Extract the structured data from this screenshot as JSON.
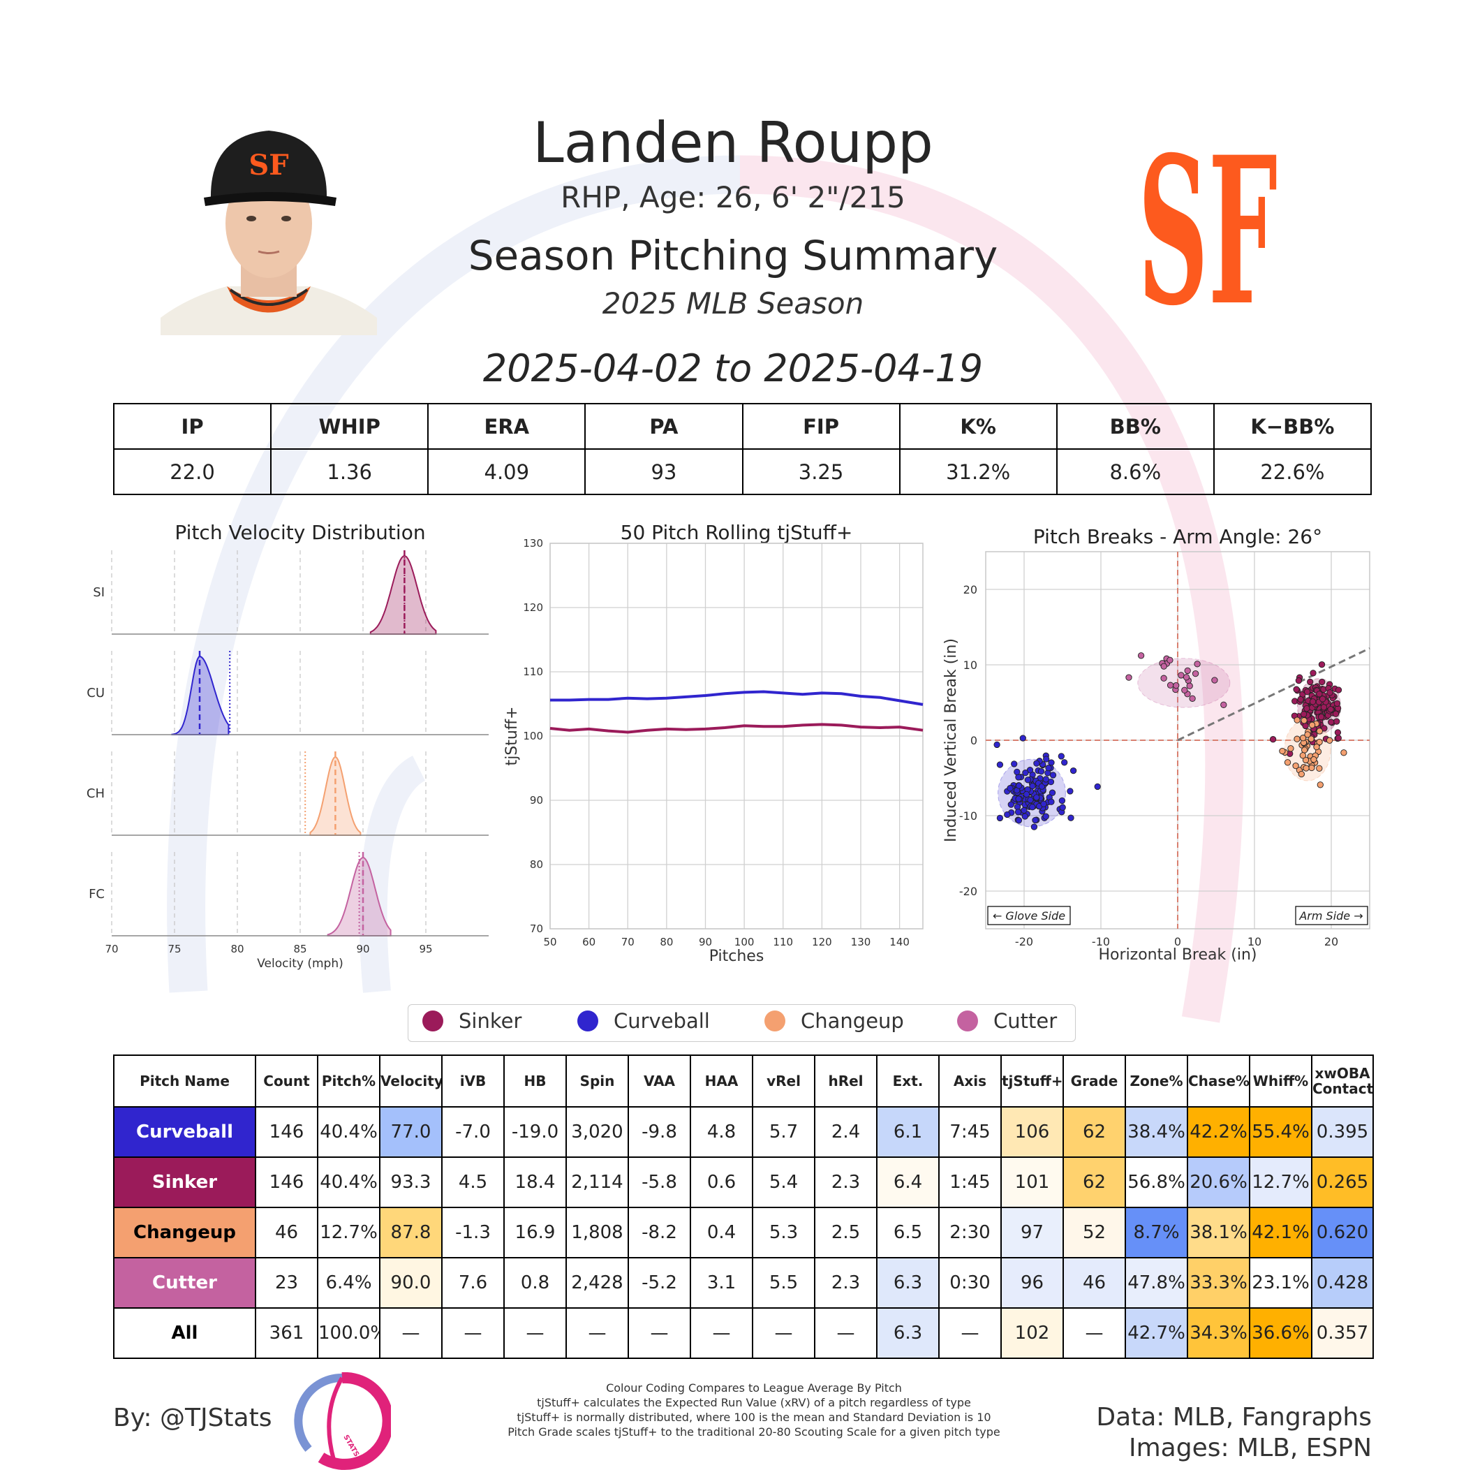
{
  "header": {
    "name": "Landen Roupp",
    "info": "RHP, Age: 26, 6' 2\"/215",
    "title": "Season Pitching Summary",
    "season": "2025 MLB Season",
    "date_range": "2025-04-02 to 2025-04-19"
  },
  "stats": {
    "headers": [
      "IP",
      "WHIP",
      "ERA",
      "PA",
      "FIP",
      "K%",
      "BB%",
      "K−BB%"
    ],
    "values": [
      "22.0",
      "1.36",
      "4.09",
      "93",
      "3.25",
      "31.2%",
      "8.6%",
      "22.6%"
    ]
  },
  "colors": {
    "sinker": "#9b1b5a",
    "curveball": "#3025ce",
    "changeup": "#f4a070",
    "cutter": "#c462a0",
    "giants_orange": "#fd5a1e"
  },
  "legend": [
    "Sinker",
    "Curveball",
    "Changeup",
    "Cutter"
  ],
  "chart_data": [
    {
      "type": "area",
      "title": "Pitch Velocity Distribution",
      "xlabel": "Velocity (mph)",
      "xlim": [
        70,
        100
      ],
      "xticks": [
        "70",
        "75",
        "80",
        "85",
        "90",
        "95"
      ],
      "series": [
        {
          "name": "SI",
          "mean": 93.3,
          "league_avg": 93.3,
          "min": 90.6,
          "max": 95.8
        },
        {
          "name": "CU",
          "mean": 77.0,
          "league_avg": 79.4,
          "min": 74.8,
          "max": 79.3
        },
        {
          "name": "CH",
          "mean": 87.8,
          "league_avg": 85.4,
          "min": 85.8,
          "max": 89.8
        },
        {
          "name": "FC",
          "mean": 90.0,
          "league_avg": 89.7,
          "min": 87.2,
          "max": 92.2
        }
      ]
    },
    {
      "type": "line",
      "title": "50 Pitch Rolling tjStuff+",
      "xlabel": "Pitches",
      "ylabel": "tjStuff+",
      "xlim": [
        50,
        146
      ],
      "ylim": [
        70,
        130
      ],
      "xticks": [
        "50",
        "60",
        "70",
        "80",
        "90",
        "100",
        "110",
        "120",
        "130",
        "140"
      ],
      "yticks": [
        "70",
        "80",
        "90",
        "100",
        "110",
        "120",
        "130"
      ],
      "series": [
        {
          "name": "Curveball",
          "x": [
            50,
            55,
            60,
            65,
            70,
            75,
            80,
            85,
            90,
            95,
            100,
            105,
            110,
            115,
            120,
            125,
            130,
            135,
            140,
            146
          ],
          "values": [
            105.6,
            105.6,
            105.7,
            105.7,
            105.9,
            105.8,
            105.9,
            106.1,
            106.3,
            106.6,
            106.8,
            106.9,
            106.7,
            106.5,
            106.7,
            106.6,
            106.2,
            106.0,
            105.5,
            104.9
          ]
        },
        {
          "name": "Sinker",
          "x": [
            50,
            55,
            60,
            65,
            70,
            75,
            80,
            85,
            90,
            95,
            100,
            105,
            110,
            115,
            120,
            125,
            130,
            135,
            140,
            146
          ],
          "values": [
            101.2,
            100.9,
            101.1,
            100.8,
            100.6,
            100.9,
            101.1,
            101.0,
            101.1,
            101.3,
            101.6,
            101.5,
            101.5,
            101.7,
            101.8,
            101.7,
            101.4,
            101.3,
            101.4,
            100.9
          ]
        }
      ]
    },
    {
      "type": "scatter",
      "title": "Pitch Breaks - Arm Angle: 26°",
      "xlabel": "Horizontal Break (in)",
      "ylabel": "Induced Vertical Break (in)",
      "xlim": [
        -25,
        25
      ],
      "ylim": [
        -25,
        25
      ],
      "xticks": [
        "-20",
        "-10",
        "0",
        "10",
        "20"
      ],
      "yticks": [
        "-20",
        "-10",
        "0",
        "10",
        "20"
      ],
      "glove_side": "← Glove Side",
      "arm_side": "Arm Side →",
      "arm_angle_deg": 26,
      "series": [
        {
          "name": "Curveball",
          "center": [
            -19.0,
            -7.0
          ],
          "spread": [
            2.2,
            2.2
          ],
          "count": 146
        },
        {
          "name": "Sinker",
          "center": [
            18.4,
            4.5
          ],
          "spread": [
            1.4,
            1.8
          ],
          "count": 146
        },
        {
          "name": "Changeup",
          "center": [
            16.9,
            -1.3
          ],
          "spread": [
            1.5,
            2.0
          ],
          "count": 46
        },
        {
          "name": "Cutter",
          "center": [
            0.8,
            7.6
          ],
          "spread": [
            3.0,
            1.6
          ],
          "count": 23
        }
      ]
    }
  ],
  "pitch_table": {
    "headers": [
      "Pitch Name",
      "Count",
      "Pitch%",
      "Velocity",
      "iVB",
      "HB",
      "Spin",
      "VAA",
      "HAA",
      "vRel",
      "hRel",
      "Ext.",
      "Axis",
      "tjStuff+",
      "Grade",
      "Zone%",
      "Chase%",
      "Whiff%",
      "xwOBA Contact"
    ],
    "rows": [
      {
        "name": "Curveball",
        "bg": "#3025ce",
        "fg": "#ffffff",
        "cells": [
          "146",
          "40.4%",
          "77.0",
          "-7.0",
          "-19.0",
          "3,020",
          "-9.8",
          "4.8",
          "5.7",
          "2.4",
          "6.1",
          "7:45",
          "106",
          "62",
          "38.4%",
          "42.2%",
          "55.4%",
          "0.395"
        ],
        "colors": [
          "#fff",
          "#fff",
          "#a4c0fb",
          "#fff",
          "#fff",
          "#fff",
          "#fff",
          "#fff",
          "#fff",
          "#fff",
          "#c6d7fa",
          "#fff",
          "#ffe8b4",
          "#ffd26e",
          "#c8d8fa",
          "#ffb000",
          "#ffb000",
          "#dbe5fb"
        ]
      },
      {
        "name": "Sinker",
        "bg": "#9b1b5a",
        "fg": "#ffffff",
        "cells": [
          "146",
          "40.4%",
          "93.3",
          "4.5",
          "18.4",
          "2,114",
          "-5.8",
          "0.6",
          "5.4",
          "2.3",
          "6.4",
          "1:45",
          "101",
          "62",
          "56.8%",
          "20.6%",
          "12.7%",
          "0.265"
        ],
        "colors": [
          "#fff",
          "#fff",
          "#fff",
          "#fff",
          "#fff",
          "#fff",
          "#fff",
          "#fff",
          "#fff",
          "#fff",
          "#fffaf0",
          "#fff",
          "#fffaef",
          "#ffd26e",
          "#fff",
          "#b6cbfb",
          "#e4ebfc",
          "#ffbd26"
        ]
      },
      {
        "name": "Changeup",
        "bg": "#f4a070",
        "fg": "#000000",
        "cells": [
          "46",
          "12.7%",
          "87.8",
          "-1.3",
          "16.9",
          "1,808",
          "-8.2",
          "0.4",
          "5.3",
          "2.5",
          "6.5",
          "2:30",
          "97",
          "52",
          "8.7%",
          "38.1%",
          "42.1%",
          "0.620"
        ],
        "colors": [
          "#fff",
          "#fff",
          "#ffd77a",
          "#fff",
          "#fff",
          "#fff",
          "#fff",
          "#fff",
          "#fff",
          "#fff",
          "#fff",
          "#fff",
          "#e9effc",
          "#fff7ea",
          "#6690f8",
          "#ffdc8a",
          "#ffb000",
          "#6690f8"
        ]
      },
      {
        "name": "Cutter",
        "bg": "#c462a0",
        "fg": "#ffffff",
        "cells": [
          "23",
          "6.4%",
          "90.0",
          "7.6",
          "0.8",
          "2,428",
          "-5.2",
          "3.1",
          "5.5",
          "2.3",
          "6.3",
          "0:30",
          "96",
          "46",
          "47.8%",
          "33.3%",
          "23.1%",
          "0.428"
        ],
        "colors": [
          "#fff",
          "#fff",
          "#fff6e2",
          "#fff",
          "#fff",
          "#fff",
          "#fff",
          "#fff",
          "#fff",
          "#fff",
          "#dfe8fb",
          "#fff",
          "#e6ecfc",
          "#e4ebfc",
          "#e8eefc",
          "#ffd068",
          "#fff",
          "#b7cdfa"
        ]
      },
      {
        "name": "All",
        "bg": "#ffffff",
        "fg": "#000000",
        "cells": [
          "361",
          "100.0%",
          "—",
          "—",
          "—",
          "—",
          "—",
          "—",
          "—",
          "—",
          "6.3",
          "—",
          "102",
          "—",
          "42.7%",
          "34.3%",
          "36.6%",
          "0.357"
        ],
        "colors": [
          "#fff",
          "#fff",
          "#fff",
          "#fff",
          "#fff",
          "#fff",
          "#fff",
          "#fff",
          "#fff",
          "#fff",
          "#dfe8fb",
          "#fff",
          "#fff6e2",
          "#fff",
          "#c8d8fa",
          "#ffc43a",
          "#ffb000",
          "#fff7ea"
        ]
      }
    ]
  },
  "footer": {
    "by": "By: @TJStats",
    "notes": [
      "Colour Coding Compares to League Average By Pitch",
      "tjStuff+ calculates the Expected Run Value (xRV) of a pitch regardless of type",
      "tjStuff+ is normally distributed, where 100 is the mean and Standard Deviation is 10",
      "Pitch Grade scales tjStuff+ to the traditional 20-80 Scouting Scale for a given pitch type"
    ],
    "data_source": "Data: MLB, Fangraphs",
    "image_source": "Images: MLB, ESPN",
    "logo_text": "STATS"
  }
}
